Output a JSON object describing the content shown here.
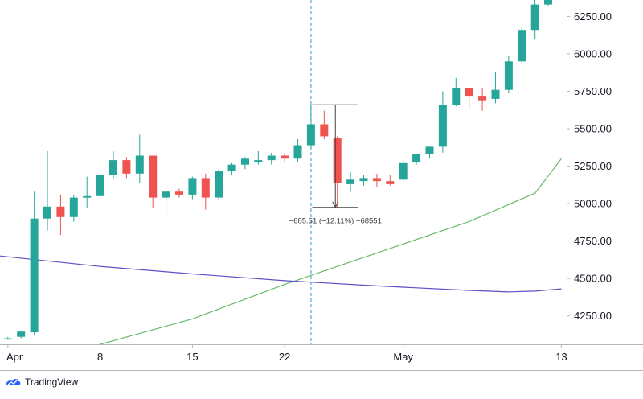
{
  "chart_data": {
    "type": "candlestick",
    "y_axis": {
      "side": "right",
      "ticks": [
        4250,
        4500,
        4750,
        5000,
        5250,
        5500,
        5750,
        6000,
        6250
      ],
      "tick_labels": [
        "4250.00",
        "4500.00",
        "4750.00",
        "5000.00",
        "5250.00",
        "5500.00",
        "5750.00",
        "6000.00",
        "6250.00"
      ],
      "ylim": [
        4060,
        6360
      ]
    },
    "x_axis": {
      "tick_labels": [
        "Apr",
        "8",
        "15",
        "22",
        "May",
        "13"
      ],
      "tick_indices": [
        0,
        7,
        14,
        21,
        30,
        42
      ],
      "xlim_index": [
        -0.6,
        42.4
      ]
    },
    "series": [
      {
        "kind": "candles",
        "ohlc": [
          [
            4095,
            4110,
            4090,
            4100
          ],
          [
            4110,
            4150,
            4100,
            4145
          ],
          [
            4140,
            5080,
            4120,
            4900
          ],
          [
            4900,
            5350,
            4820,
            4980
          ],
          [
            4980,
            5060,
            4790,
            4910
          ],
          [
            4910,
            5060,
            4880,
            5040
          ],
          [
            5040,
            5180,
            4970,
            5050
          ],
          [
            5050,
            5200,
            5030,
            5190
          ],
          [
            5190,
            5350,
            5160,
            5290
          ],
          [
            5290,
            5310,
            5170,
            5200
          ],
          [
            5200,
            5460,
            5140,
            5320
          ],
          [
            5320,
            5320,
            4970,
            5040
          ],
          [
            5040,
            5100,
            4920,
            5080
          ],
          [
            5080,
            5100,
            5040,
            5060
          ],
          [
            5060,
            5180,
            5030,
            5170
          ],
          [
            5170,
            5200,
            4960,
            5040
          ],
          [
            5040,
            5230,
            5020,
            5220
          ],
          [
            5220,
            5270,
            5190,
            5260
          ],
          [
            5260,
            5310,
            5230,
            5300
          ],
          [
            5280,
            5350,
            5260,
            5290
          ],
          [
            5290,
            5340,
            5260,
            5320
          ],
          [
            5320,
            5340,
            5280,
            5300
          ],
          [
            5300,
            5430,
            5280,
            5390
          ],
          [
            5390,
            5660,
            5370,
            5530
          ],
          [
            5530,
            5620,
            5430,
            5450
          ],
          [
            5440,
            5450,
            4970,
            5140
          ],
          [
            5130,
            5210,
            5080,
            5160
          ],
          [
            5150,
            5190,
            5120,
            5170
          ],
          [
            5170,
            5200,
            5110,
            5150
          ],
          [
            5150,
            5190,
            5120,
            5130
          ],
          [
            5160,
            5290,
            5150,
            5270
          ],
          [
            5280,
            5330,
            5260,
            5330
          ],
          [
            5330,
            5380,
            5300,
            5380
          ],
          [
            5380,
            5750,
            5340,
            5660
          ],
          [
            5660,
            5840,
            5650,
            5770
          ],
          [
            5770,
            5780,
            5630,
            5720
          ],
          [
            5720,
            5770,
            5620,
            5690
          ],
          [
            5700,
            5880,
            5670,
            5760
          ],
          [
            5760,
            5990,
            5740,
            5950
          ],
          [
            5950,
            6180,
            5940,
            6160
          ],
          [
            6160,
            6360,
            6100,
            6330
          ],
          [
            6330,
            6370,
            6320,
            6360
          ]
        ]
      },
      {
        "kind": "moving-average-green",
        "x_index": [
          7,
          14,
          21,
          25,
          30,
          35,
          40,
          42
        ],
        "values": [
          4060,
          4230,
          4460,
          4580,
          4730,
          4880,
          5070,
          5300
        ]
      },
      {
        "kind": "moving-average-purple",
        "x_index": [
          -0.6,
          7,
          14,
          21,
          28,
          35,
          38,
          40,
          42
        ],
        "values": [
          4650,
          4580,
          4530,
          4485,
          4450,
          4420,
          4410,
          4415,
          4430
        ]
      }
    ],
    "measurement": {
      "label": "−685.51 (−12.11%) −68551",
      "high": 5660,
      "low": 4975,
      "start_index": 23.1,
      "end_index": 26.6
    },
    "crosshair_index": 23,
    "colors": {
      "up": "#26a69a",
      "down": "#ef5350",
      "ma_fast": "#66bb6a",
      "ma_slow": "#5e4fc4",
      "crosshair": "#4fa8e0",
      "axis_text": "#131722",
      "measure": "#444444"
    }
  },
  "footer": {
    "brand": "TradingView"
  }
}
